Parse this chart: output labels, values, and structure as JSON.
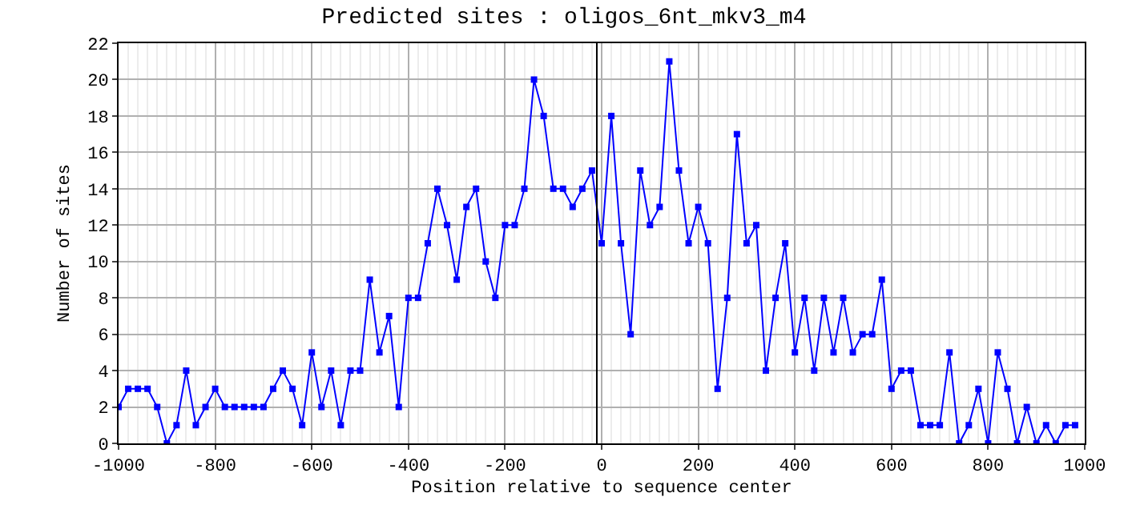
{
  "chart_data": {
    "type": "line",
    "title": "Predicted sites : oligos_6nt_mkv3_m4",
    "xlabel": "Position relative to sequence center",
    "ylabel": "Number of sites",
    "x": [
      -1000,
      -980,
      -960,
      -940,
      -920,
      -900,
      -880,
      -860,
      -840,
      -820,
      -800,
      -780,
      -760,
      -740,
      -720,
      -700,
      -680,
      -660,
      -640,
      -620,
      -600,
      -580,
      -560,
      -540,
      -520,
      -500,
      -480,
      -460,
      -440,
      -420,
      -400,
      -380,
      -360,
      -340,
      -320,
      -300,
      -280,
      -260,
      -240,
      -220,
      -200,
      -180,
      -160,
      -140,
      -120,
      -100,
      -80,
      -60,
      -40,
      -20,
      0,
      20,
      40,
      60,
      80,
      100,
      120,
      140,
      160,
      180,
      200,
      220,
      240,
      260,
      280,
      300,
      320,
      340,
      360,
      380,
      400,
      420,
      440,
      460,
      480,
      500,
      520,
      540,
      560,
      580,
      600,
      620,
      640,
      660,
      680,
      700,
      720,
      740,
      760,
      780,
      800,
      820,
      840,
      860,
      880,
      900,
      920,
      940,
      960,
      980
    ],
    "series": [
      {
        "color": "#0000ff",
        "values": [
          2,
          3,
          3,
          3,
          2,
          0,
          1,
          4,
          1,
          2,
          3,
          2,
          2,
          2,
          2,
          2,
          3,
          4,
          3,
          1,
          5,
          2,
          4,
          1,
          4,
          4,
          9,
          5,
          7,
          2,
          8,
          8,
          11,
          14,
          12,
          9,
          13,
          14,
          10,
          8,
          12,
          12,
          14,
          20,
          18,
          14,
          14,
          13,
          14,
          15,
          11,
          18,
          11,
          6,
          15,
          12,
          13,
          21,
          15,
          11,
          13,
          11,
          3,
          8,
          17,
          11,
          12,
          4,
          8,
          11,
          5,
          8,
          4,
          8,
          5,
          8,
          5,
          6,
          6,
          9,
          3,
          4,
          4,
          1,
          1,
          1,
          5,
          0,
          1,
          3,
          0,
          5,
          3,
          0,
          2,
          0,
          1,
          0,
          1,
          1
        ]
      }
    ],
    "xlim": [
      -1000,
      1000
    ],
    "xticks": [
      -1000,
      -800,
      -600,
      -400,
      -200,
      0,
      200,
      400,
      600,
      800,
      1000
    ],
    "ylim": [
      0,
      22
    ],
    "yticks": [
      0,
      2,
      4,
      6,
      8,
      10,
      12,
      14,
      16,
      18,
      20,
      22
    ],
    "ref_lines": [
      {
        "axis": "x",
        "value": -10,
        "color": "#000000"
      }
    ],
    "grid": true,
    "marker": "square",
    "line_style": "solid"
  }
}
